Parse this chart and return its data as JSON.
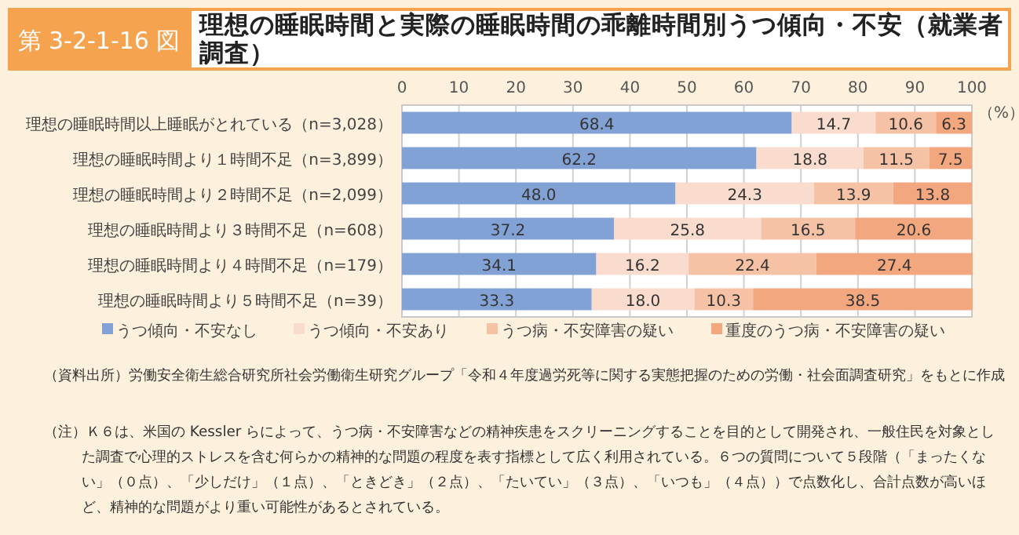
{
  "chart_data": {
    "type": "bar",
    "orientation": "horizontal",
    "stacked": true,
    "title": "理想の睡眠時間と実際の睡眠時間の乖離時間別うつ傾向・不安（就業者調査）",
    "xlabel": "（%）",
    "categories": [
      "理想の睡眠時間以上睡眠がとれている（n=3,028）",
      "理想の睡眠時間より１時間不足（n=3,899）",
      "理想の睡眠時間より２時間不足（n=2,099）",
      "理想の睡眠時間より３時間不足（n=608）",
      "理想の睡眠時間より４時間不足（n=179）",
      "理想の睡眠時間より５時間不足（n=39）"
    ],
    "series": [
      {
        "name": "うつ傾向・不安なし",
        "color": "#82a2d6",
        "values": [
          68.4,
          62.2,
          48.0,
          37.2,
          34.1,
          33.3
        ],
        "value_labels": [
          "68.4",
          "62.2",
          "48.0",
          "37.2",
          "34.1",
          "33.3"
        ]
      },
      {
        "name": "うつ傾向・不安あり",
        "color": "#f9dccd",
        "values": [
          14.7,
          18.8,
          24.3,
          25.8,
          16.2,
          18.0
        ],
        "value_labels": [
          "14.7",
          "18.8",
          "24.3",
          "25.8",
          "16.2",
          "18.0"
        ]
      },
      {
        "name": "うつ病・不安障害の疑い",
        "color": "#f6c2a5",
        "values": [
          10.6,
          11.5,
          13.9,
          16.5,
          22.4,
          10.3
        ],
        "value_labels": [
          "10.6",
          "11.5",
          "13.9",
          "16.5",
          "22.4",
          "10.3"
        ]
      },
      {
        "name": "重度のうつ病・不安障害の疑い",
        "color": "#f3a77f",
        "values": [
          6.3,
          7.5,
          13.8,
          20.6,
          27.4,
          38.5
        ],
        "value_labels": [
          "6.3",
          "7.5",
          "13.8",
          "20.6",
          "27.4",
          "38.5"
        ]
      }
    ],
    "xlim": [
      0,
      100
    ],
    "xticks": [
      0,
      10,
      20,
      30,
      40,
      50,
      60,
      70,
      80,
      90,
      100
    ],
    "grid": "x",
    "legend": "bottom",
    "annotations": [
      "第 3-2-1-16 図",
      "（資料出所）労働安全衛生総合研究所社会労働衛生研究グループ「令和４年度過労死等に関する実態把握のための労働・社会面調査研究」をもとに作成",
      "（注）Ｋ６は、米国の Kessler らによって、うつ病・不安障害などの精神疾患をスクリーニングすることを目的として開発され、一般住民を対象とした調査で心理的ストレスを含む何らかの精神的な問題の程度を表す指標として広く利用されている。６つの質問について５段階（「まったくない」（０点）、「少しだけ」（１点）、「ときどき」（２点）、「たいてい」（３点）、「いつも」（４点））で点数化し、合計点数が高いほど、精神的な問題がより重い可能性があるとされている。"
    ]
  }
}
